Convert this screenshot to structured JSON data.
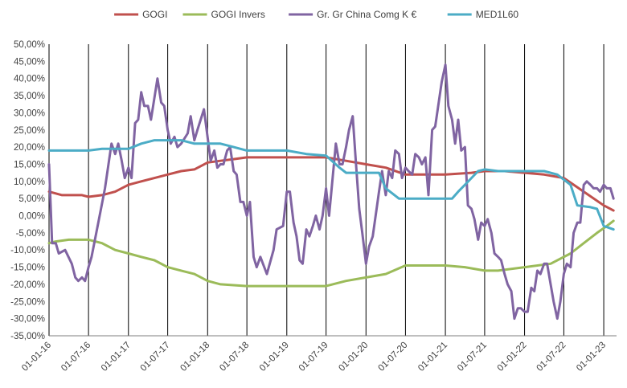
{
  "chart_data": {
    "type": "line",
    "title": "",
    "xlabel": "",
    "ylabel": "",
    "ylim": [
      -0.35,
      0.5
    ],
    "y_ticks": [
      0.5,
      0.45,
      0.4,
      0.35,
      0.3,
      0.25,
      0.2,
      0.15,
      0.1,
      0.05,
      0.0,
      -0.05,
      -0.1,
      -0.15,
      -0.2,
      -0.25,
      -0.3,
      -0.35
    ],
    "y_tick_labels": [
      "50,00%",
      "45,00%",
      "40,00%",
      "35,00%",
      "30,00%",
      "25,00%",
      "20,00%",
      "15,00%",
      "10,00%",
      "5,00%",
      "0,00%",
      "-5,00%",
      "-10,00%",
      "-15,00%",
      "-20,00%",
      "-25,00%",
      "-30,00%",
      "-35,00%"
    ],
    "x_range": [
      "2016-01-01",
      "2023-03-01"
    ],
    "x_ticks": [
      "2016-01-01",
      "2016-07-01",
      "2017-01-01",
      "2017-07-01",
      "2018-01-01",
      "2018-07-01",
      "2019-01-01",
      "2019-07-01",
      "2020-01-01",
      "2020-07-01",
      "2021-01-01",
      "2021-07-01",
      "2022-01-01",
      "2022-07-01",
      "2023-01-01"
    ],
    "x_tick_labels": [
      "01-01-16",
      "01-07-16",
      "01-01-17",
      "01-07-17",
      "01-01-18",
      "01-07-18",
      "01-01-19",
      "01-07-19",
      "01-01-20",
      "01-07-20",
      "01-01-21",
      "01-07-21",
      "01-01-22",
      "01-07-22",
      "01-01-23"
    ],
    "grid": {
      "vertical": true,
      "horizontal": false
    },
    "legend_position": "top",
    "series": [
      {
        "name": "GOGI",
        "color": "#C0504D",
        "points": [
          [
            "2016-01-01",
            0.07
          ],
          [
            "2016-03-01",
            0.06
          ],
          [
            "2016-06-01",
            0.06
          ],
          [
            "2016-07-01",
            0.055
          ],
          [
            "2016-09-01",
            0.06
          ],
          [
            "2016-11-01",
            0.07
          ],
          [
            "2017-01-01",
            0.09
          ],
          [
            "2017-03-01",
            0.1
          ],
          [
            "2017-05-01",
            0.11
          ],
          [
            "2017-07-01",
            0.12
          ],
          [
            "2017-09-01",
            0.13
          ],
          [
            "2017-11-01",
            0.135
          ],
          [
            "2018-01-01",
            0.155
          ],
          [
            "2018-03-01",
            0.16
          ],
          [
            "2018-05-01",
            0.165
          ],
          [
            "2018-07-01",
            0.17
          ],
          [
            "2019-01-01",
            0.17
          ],
          [
            "2019-07-01",
            0.17
          ],
          [
            "2019-10-01",
            0.16
          ],
          [
            "2020-01-01",
            0.15
          ],
          [
            "2020-04-01",
            0.14
          ],
          [
            "2020-07-01",
            0.12
          ],
          [
            "2021-01-01",
            0.12
          ],
          [
            "2021-05-01",
            0.125
          ],
          [
            "2021-07-01",
            0.13
          ],
          [
            "2021-10-01",
            0.13
          ],
          [
            "2022-01-01",
            0.125
          ],
          [
            "2022-04-01",
            0.12
          ],
          [
            "2022-07-01",
            0.11
          ],
          [
            "2022-10-01",
            0.07
          ],
          [
            "2023-01-01",
            0.03
          ],
          [
            "2023-02-15",
            0.015
          ]
        ]
      },
      {
        "name": "GOGI Invers",
        "color": "#9BBB59",
        "points": [
          [
            "2016-01-01",
            -0.08
          ],
          [
            "2016-02-01",
            -0.075
          ],
          [
            "2016-04-01",
            -0.07
          ],
          [
            "2016-07-01",
            -0.07
          ],
          [
            "2016-09-01",
            -0.08
          ],
          [
            "2016-11-01",
            -0.1
          ],
          [
            "2017-01-01",
            -0.11
          ],
          [
            "2017-03-01",
            -0.12
          ],
          [
            "2017-05-01",
            -0.13
          ],
          [
            "2017-07-01",
            -0.15
          ],
          [
            "2017-09-01",
            -0.16
          ],
          [
            "2017-11-01",
            -0.17
          ],
          [
            "2018-01-01",
            -0.19
          ],
          [
            "2018-03-01",
            -0.2
          ],
          [
            "2018-07-01",
            -0.205
          ],
          [
            "2019-01-01",
            -0.205
          ],
          [
            "2019-07-01",
            -0.205
          ],
          [
            "2019-10-01",
            -0.19
          ],
          [
            "2020-01-01",
            -0.18
          ],
          [
            "2020-04-01",
            -0.17
          ],
          [
            "2020-07-01",
            -0.145
          ],
          [
            "2021-01-01",
            -0.145
          ],
          [
            "2021-04-01",
            -0.15
          ],
          [
            "2021-07-01",
            -0.16
          ],
          [
            "2021-09-01",
            -0.16
          ],
          [
            "2022-01-01",
            -0.15
          ],
          [
            "2022-05-01",
            -0.14
          ],
          [
            "2022-08-01",
            -0.11
          ],
          [
            "2022-10-01",
            -0.08
          ],
          [
            "2022-12-01",
            -0.05
          ],
          [
            "2023-01-15",
            -0.03
          ],
          [
            "2023-02-15",
            -0.015
          ]
        ]
      },
      {
        "name": "Gr. Gr China Comg K €",
        "color": "#8064A2",
        "points": [
          [
            "2016-01-01",
            0.15
          ],
          [
            "2016-01-15",
            -0.08
          ],
          [
            "2016-02-01",
            -0.08
          ],
          [
            "2016-02-15",
            -0.11
          ],
          [
            "2016-03-15",
            -0.1
          ],
          [
            "2016-04-15",
            -0.14
          ],
          [
            "2016-05-01",
            -0.18
          ],
          [
            "2016-05-15",
            -0.19
          ],
          [
            "2016-06-01",
            -0.18
          ],
          [
            "2016-06-15",
            -0.19
          ],
          [
            "2016-07-01",
            -0.15
          ],
          [
            "2016-07-15",
            -0.12
          ],
          [
            "2016-08-15",
            -0.02
          ],
          [
            "2016-09-15",
            0.08
          ],
          [
            "2016-10-15",
            0.21
          ],
          [
            "2016-11-01",
            0.18
          ],
          [
            "2016-11-15",
            0.21
          ],
          [
            "2016-12-01",
            0.16
          ],
          [
            "2016-12-15",
            0.11
          ],
          [
            "2017-01-01",
            0.14
          ],
          [
            "2017-01-15",
            0.11
          ],
          [
            "2017-02-01",
            0.27
          ],
          [
            "2017-02-15",
            0.28
          ],
          [
            "2017-03-01",
            0.36
          ],
          [
            "2017-03-15",
            0.32
          ],
          [
            "2017-04-01",
            0.32
          ],
          [
            "2017-04-15",
            0.28
          ],
          [
            "2017-05-15",
            0.4
          ],
          [
            "2017-06-01",
            0.33
          ],
          [
            "2017-06-15",
            0.32
          ],
          [
            "2017-07-01",
            0.25
          ],
          [
            "2017-07-15",
            0.21
          ],
          [
            "2017-08-01",
            0.23
          ],
          [
            "2017-08-15",
            0.2
          ],
          [
            "2017-09-01",
            0.21
          ],
          [
            "2017-10-01",
            0.24
          ],
          [
            "2017-10-15",
            0.29
          ],
          [
            "2017-11-01",
            0.22
          ],
          [
            "2017-11-15",
            0.25
          ],
          [
            "2017-12-15",
            0.31
          ],
          [
            "2018-01-15",
            0.16
          ],
          [
            "2018-02-01",
            0.19
          ],
          [
            "2018-02-15",
            0.14
          ],
          [
            "2018-03-01",
            0.15
          ],
          [
            "2018-03-15",
            0.15
          ],
          [
            "2018-04-01",
            0.19
          ],
          [
            "2018-04-15",
            0.2
          ],
          [
            "2018-05-01",
            0.13
          ],
          [
            "2018-05-15",
            0.12
          ],
          [
            "2018-06-01",
            0.04
          ],
          [
            "2018-06-15",
            0.04
          ],
          [
            "2018-07-01",
            0.0
          ],
          [
            "2018-07-15",
            0.04
          ],
          [
            "2018-08-01",
            -0.12
          ],
          [
            "2018-08-15",
            -0.15
          ],
          [
            "2018-09-01",
            -0.12
          ],
          [
            "2018-10-01",
            -0.17
          ],
          [
            "2018-11-01",
            -0.1
          ],
          [
            "2018-11-15",
            -0.04
          ],
          [
            "2018-12-15",
            -0.03
          ],
          [
            "2019-01-01",
            0.07
          ],
          [
            "2019-01-15",
            0.07
          ],
          [
            "2019-02-01",
            -0.02
          ],
          [
            "2019-02-15",
            -0.06
          ],
          [
            "2019-03-01",
            -0.13
          ],
          [
            "2019-03-15",
            -0.14
          ],
          [
            "2019-04-01",
            -0.04
          ],
          [
            "2019-04-15",
            -0.06
          ],
          [
            "2019-05-01",
            -0.03
          ],
          [
            "2019-05-15",
            0.0
          ],
          [
            "2019-06-01",
            -0.04
          ],
          [
            "2019-06-15",
            0.0
          ],
          [
            "2019-07-01",
            0.08
          ],
          [
            "2019-07-15",
            0.0
          ],
          [
            "2019-08-15",
            0.21
          ],
          [
            "2019-09-01",
            0.15
          ],
          [
            "2019-09-15",
            0.15
          ],
          [
            "2019-10-01",
            0.2
          ],
          [
            "2019-10-15",
            0.25
          ],
          [
            "2019-11-01",
            0.29
          ],
          [
            "2019-11-15",
            0.16
          ],
          [
            "2019-12-01",
            0.02
          ],
          [
            "2019-12-15",
            -0.05
          ],
          [
            "2020-01-01",
            -0.14
          ],
          [
            "2020-01-15",
            -0.09
          ],
          [
            "2020-02-01",
            -0.06
          ],
          [
            "2020-03-01",
            0.07
          ],
          [
            "2020-03-15",
            0.13
          ],
          [
            "2020-04-01",
            0.06
          ],
          [
            "2020-04-15",
            0.13
          ],
          [
            "2020-05-01",
            0.11
          ],
          [
            "2020-05-15",
            0.19
          ],
          [
            "2020-06-01",
            0.18
          ],
          [
            "2020-06-15",
            0.11
          ],
          [
            "2020-07-01",
            0.14
          ],
          [
            "2020-07-15",
            0.13
          ],
          [
            "2020-08-01",
            0.12
          ],
          [
            "2020-08-15",
            0.18
          ],
          [
            "2020-09-01",
            0.17
          ],
          [
            "2020-09-15",
            0.15
          ],
          [
            "2020-10-01",
            0.17
          ],
          [
            "2020-10-15",
            0.06
          ],
          [
            "2020-11-01",
            0.25
          ],
          [
            "2020-11-15",
            0.26
          ],
          [
            "2020-12-15",
            0.39
          ],
          [
            "2021-01-01",
            0.44
          ],
          [
            "2021-01-15",
            0.32
          ],
          [
            "2021-02-01",
            0.28
          ],
          [
            "2021-02-15",
            0.21
          ],
          [
            "2021-03-01",
            0.28
          ],
          [
            "2021-03-15",
            0.19
          ],
          [
            "2021-04-01",
            0.2
          ],
          [
            "2021-04-15",
            0.03
          ],
          [
            "2021-05-01",
            0.02
          ],
          [
            "2021-05-15",
            -0.01
          ],
          [
            "2021-06-01",
            -0.07
          ],
          [
            "2021-06-15",
            -0.02
          ],
          [
            "2021-07-01",
            -0.03
          ],
          [
            "2021-07-15",
            -0.01
          ],
          [
            "2021-08-01",
            -0.05
          ],
          [
            "2021-08-15",
            -0.11
          ],
          [
            "2021-09-01",
            -0.12
          ],
          [
            "2021-09-15",
            -0.13
          ],
          [
            "2021-10-01",
            -0.17
          ],
          [
            "2021-10-15",
            -0.2
          ],
          [
            "2021-11-01",
            -0.22
          ],
          [
            "2021-11-15",
            -0.3
          ],
          [
            "2021-12-01",
            -0.27
          ],
          [
            "2021-12-15",
            -0.27
          ],
          [
            "2022-01-01",
            -0.28
          ],
          [
            "2022-01-15",
            -0.28
          ],
          [
            "2022-02-01",
            -0.21
          ],
          [
            "2022-02-15",
            -0.22
          ],
          [
            "2022-03-01",
            -0.16
          ],
          [
            "2022-03-15",
            -0.17
          ],
          [
            "2022-04-01",
            -0.14
          ],
          [
            "2022-04-15",
            -0.14
          ],
          [
            "2022-05-01",
            -0.2
          ],
          [
            "2022-05-15",
            -0.25
          ],
          [
            "2022-06-01",
            -0.3
          ],
          [
            "2022-06-15",
            -0.25
          ],
          [
            "2022-07-01",
            -0.17
          ],
          [
            "2022-07-15",
            -0.14
          ],
          [
            "2022-08-01",
            -0.15
          ],
          [
            "2022-08-15",
            -0.05
          ],
          [
            "2022-09-01",
            -0.02
          ],
          [
            "2022-09-15",
            -0.02
          ],
          [
            "2022-10-01",
            0.09
          ],
          [
            "2022-10-15",
            0.1
          ],
          [
            "2022-11-01",
            0.09
          ],
          [
            "2022-11-15",
            0.08
          ],
          [
            "2022-12-01",
            0.08
          ],
          [
            "2022-12-15",
            0.07
          ],
          [
            "2023-01-01",
            0.09
          ],
          [
            "2023-01-15",
            0.08
          ],
          [
            "2023-02-01",
            0.08
          ],
          [
            "2023-02-15",
            0.05
          ]
        ]
      },
      {
        "name": "MED1L60",
        "color": "#4BACC6",
        "points": [
          [
            "2016-01-01",
            0.19
          ],
          [
            "2016-07-01",
            0.19
          ],
          [
            "2016-09-01",
            0.195
          ],
          [
            "2017-01-01",
            0.195
          ],
          [
            "2017-03-01",
            0.21
          ],
          [
            "2017-05-01",
            0.22
          ],
          [
            "2017-09-01",
            0.22
          ],
          [
            "2017-11-01",
            0.21
          ],
          [
            "2018-03-01",
            0.21
          ],
          [
            "2018-05-01",
            0.2
          ],
          [
            "2018-07-01",
            0.19
          ],
          [
            "2019-01-01",
            0.19
          ],
          [
            "2019-04-01",
            0.18
          ],
          [
            "2019-07-01",
            0.175
          ],
          [
            "2019-09-01",
            0.14
          ],
          [
            "2019-10-01",
            0.125
          ],
          [
            "2020-03-01",
            0.125
          ],
          [
            "2020-04-01",
            0.08
          ],
          [
            "2020-06-01",
            0.05
          ],
          [
            "2021-01-01",
            0.05
          ],
          [
            "2021-02-01",
            0.05
          ],
          [
            "2021-03-01",
            0.07
          ],
          [
            "2021-04-01",
            0.09
          ],
          [
            "2021-05-01",
            0.11
          ],
          [
            "2021-06-01",
            0.13
          ],
          [
            "2021-07-01",
            0.135
          ],
          [
            "2021-09-01",
            0.13
          ],
          [
            "2022-01-01",
            0.13
          ],
          [
            "2022-04-01",
            0.13
          ],
          [
            "2022-06-01",
            0.12
          ],
          [
            "2022-08-01",
            0.09
          ],
          [
            "2022-09-01",
            0.03
          ],
          [
            "2022-11-01",
            0.025
          ],
          [
            "2022-12-01",
            0.02
          ],
          [
            "2023-01-01",
            -0.03
          ],
          [
            "2023-02-15",
            -0.04
          ]
        ]
      }
    ]
  }
}
